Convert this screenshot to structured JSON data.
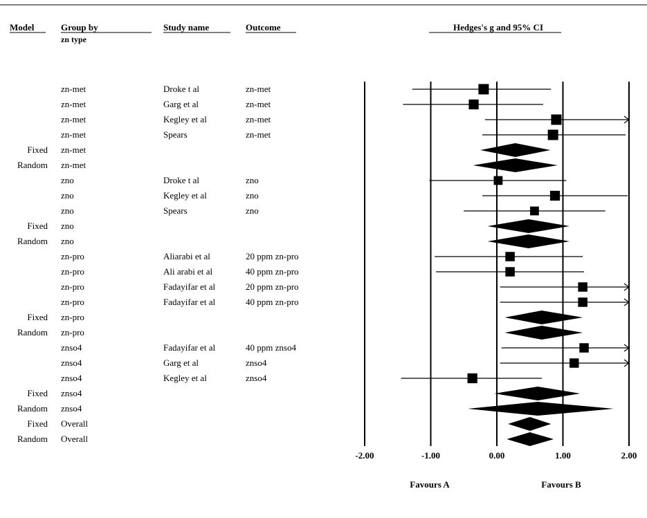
{
  "chart_data": {
    "type": "forest",
    "title": "Hedges's g and 95% CI",
    "columns": {
      "model": "Model",
      "group_by": "Group by",
      "group_by_sub": "zn type",
      "study": "Study name",
      "outcome": "Outcome"
    },
    "xlim": [
      -2,
      2
    ],
    "xticks": [
      "-2.00",
      "-1.00",
      "0.00",
      "1.00",
      "2.00"
    ],
    "footer": {
      "left": "Favours A",
      "right": "Favours B"
    },
    "rows": [
      {
        "model": "",
        "group": "zn-met",
        "study": "Droke t al",
        "outcome": "zn-met",
        "kind": "study",
        "g": -0.2,
        "lo": -1.28,
        "hi": 0.82,
        "weight": 1.0
      },
      {
        "model": "",
        "group": "zn-met",
        "study": "Garg et al",
        "outcome": "zn-met",
        "kind": "study",
        "g": -0.35,
        "lo": -1.42,
        "hi": 0.7,
        "weight": 0.95
      },
      {
        "model": "",
        "group": "zn-met",
        "study": "Kegley et al",
        "outcome": "zn-met",
        "kind": "study",
        "g": 0.9,
        "lo": -0.18,
        "hi": 2.0,
        "weight": 1.0,
        "arrow_hi": true
      },
      {
        "model": "",
        "group": "zn-met",
        "study": "Spears",
        "outcome": "zn-met",
        "kind": "study",
        "g": 0.85,
        "lo": -0.22,
        "hi": 1.95,
        "weight": 1.0
      },
      {
        "model": "Fixed",
        "group": "zn-met",
        "study": "",
        "outcome": "",
        "kind": "summary",
        "g": 0.28,
        "lo": -0.25,
        "hi": 0.81
      },
      {
        "model": "Random",
        "group": "zn-met",
        "study": "",
        "outcome": "",
        "kind": "summary",
        "g": 0.28,
        "lo": -0.36,
        "hi": 0.92
      },
      {
        "model": "",
        "group": "zno",
        "study": "Droke t al",
        "outcome": "zno",
        "kind": "study",
        "g": 0.02,
        "lo": -1.02,
        "hi": 1.05,
        "weight": 0.85
      },
      {
        "model": "",
        "group": "zno",
        "study": "Kegley et al",
        "outcome": "zno",
        "kind": "study",
        "g": 0.88,
        "lo": -0.22,
        "hi": 1.98,
        "weight": 0.95
      },
      {
        "model": "",
        "group": "zno",
        "study": "Spears",
        "outcome": "zno",
        "kind": "study",
        "g": 0.57,
        "lo": -0.5,
        "hi": 1.64,
        "weight": 0.85
      },
      {
        "model": "Fixed",
        "group": "zno",
        "study": "",
        "outcome": "",
        "kind": "summary",
        "g": 0.48,
        "lo": -0.14,
        "hi": 1.1
      },
      {
        "model": "Random",
        "group": "zno",
        "study": "",
        "outcome": "",
        "kind": "summary",
        "g": 0.48,
        "lo": -0.14,
        "hi": 1.1
      },
      {
        "model": "",
        "group": "zn-pro",
        "study": "Aliarabi et al",
        "outcome": "20 ppm zn-pro",
        "kind": "study",
        "g": 0.2,
        "lo": -0.94,
        "hi": 1.3,
        "weight": 0.9
      },
      {
        "model": "",
        "group": "zn-pro",
        "study": "Ali arabi et al",
        "outcome": "40 ppm zn-pro",
        "kind": "study",
        "g": 0.2,
        "lo": -0.92,
        "hi": 1.32,
        "weight": 0.9
      },
      {
        "model": "",
        "group": "zn-pro",
        "study": "Fadayifar et al",
        "outcome": "20 ppm zn-pro",
        "kind": "study",
        "g": 1.3,
        "lo": 0.05,
        "hi": 2.0,
        "weight": 0.9,
        "arrow_hi": true
      },
      {
        "model": "",
        "group": "zn-pro",
        "study": "Fadayifar et al",
        "outcome": "40 ppm zn-pro",
        "kind": "study",
        "g": 1.3,
        "lo": 0.05,
        "hi": 2.0,
        "weight": 0.9,
        "arrow_hi": true
      },
      {
        "model": "Fixed",
        "group": "zn-pro",
        "study": "",
        "outcome": "",
        "kind": "summary",
        "g": 0.68,
        "lo": 0.12,
        "hi": 1.3
      },
      {
        "model": "Random",
        "group": "zn-pro",
        "study": "",
        "outcome": "",
        "kind": "summary",
        "g": 0.68,
        "lo": 0.12,
        "hi": 1.3
      },
      {
        "model": "",
        "group": "znso4",
        "study": "Fadayifar et al",
        "outcome": "40 ppm znso4",
        "kind": "study",
        "g": 1.32,
        "lo": 0.07,
        "hi": 2.0,
        "weight": 0.9,
        "arrow_hi": true
      },
      {
        "model": "",
        "group": "znso4",
        "study": "Garg et al",
        "outcome": "znso4",
        "kind": "study",
        "g": 1.17,
        "lo": 0.05,
        "hi": 2.0,
        "weight": 0.9,
        "arrow_hi": true
      },
      {
        "model": "",
        "group": "znso4",
        "study": "Kegley et al",
        "outcome": "znso4",
        "kind": "study",
        "g": -0.37,
        "lo": -1.45,
        "hi": 0.68,
        "weight": 0.95
      },
      {
        "model": "Fixed",
        "group": "znso4",
        "study": "",
        "outcome": "",
        "kind": "summary",
        "g": 0.62,
        "lo": -0.04,
        "hi": 1.26
      },
      {
        "model": "Random",
        "group": "znso4",
        "study": "",
        "outcome": "",
        "kind": "summary",
        "g": 0.62,
        "lo": -0.44,
        "hi": 1.77
      },
      {
        "model": "Fixed",
        "group": "Overall",
        "study": "",
        "outcome": "",
        "kind": "summary",
        "g": 0.5,
        "lo": 0.17,
        "hi": 0.82
      },
      {
        "model": "Random",
        "group": "Overall",
        "study": "",
        "outcome": "",
        "kind": "summary",
        "g": 0.5,
        "lo": 0.15,
        "hi": 0.86
      }
    ]
  }
}
